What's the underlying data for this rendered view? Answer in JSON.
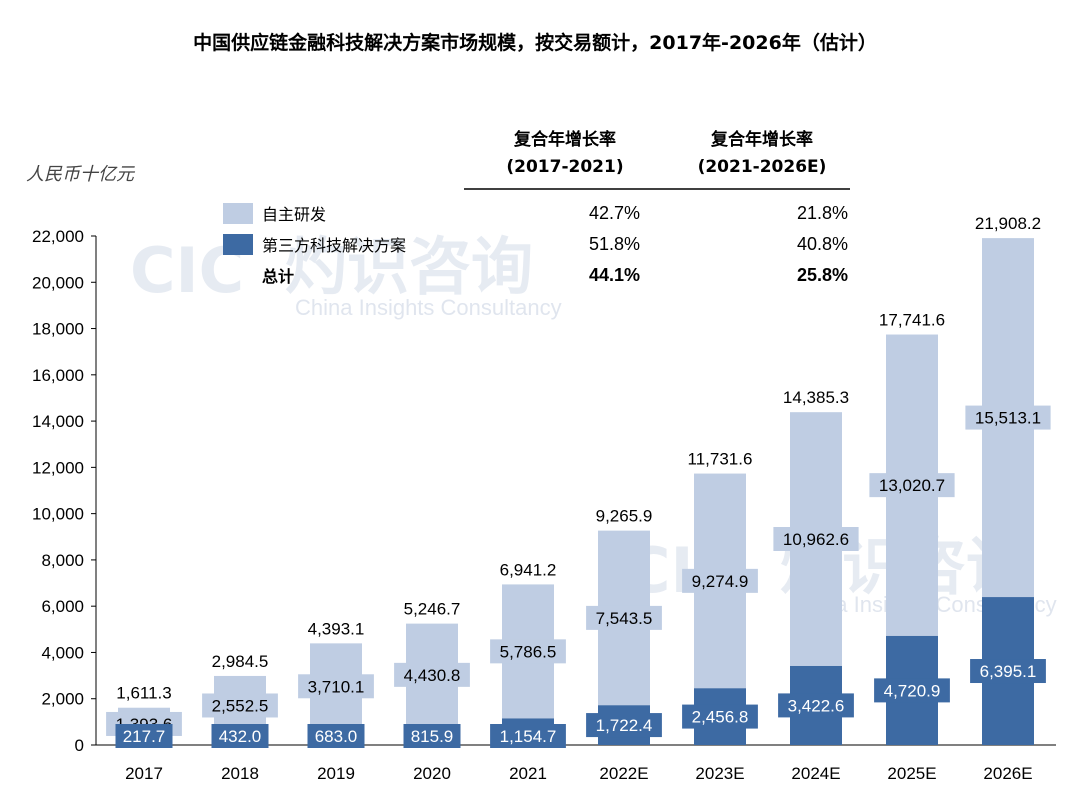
{
  "title": "中国供应链金融科技解决方案市场规模，按交易额计，2017年-2026年（估计）",
  "unit_label": "人民币十亿元",
  "watermark": {
    "cn": "灼识咨询",
    "logo": "CIC",
    "en": "China Insights Consultancy"
  },
  "colors": {
    "inhouse": "#bfcde3",
    "thirdparty": "#3d6aa3",
    "label_box_light": "#bfcde3",
    "label_box_dark": "#3d6aa3"
  },
  "cagr_table": {
    "headers": [
      {
        "line1": "复合年增长率",
        "line2": "(2017-2021)"
      },
      {
        "line1": "复合年增长率",
        "line2": "(2021-2026E)"
      }
    ],
    "rows": [
      {
        "label": "自主研发",
        "values": [
          "42.7%",
          "21.8%"
        ],
        "bold": false
      },
      {
        "label": "第三方科技解决方案",
        "values": [
          "51.8%",
          "40.8%"
        ],
        "bold": false
      },
      {
        "label": "总计",
        "values": [
          "44.1%",
          "25.8%"
        ],
        "bold": true
      }
    ]
  },
  "chart_data": {
    "type": "bar",
    "stacked": true,
    "categories": [
      "2017",
      "2018",
      "2019",
      "2020",
      "2021",
      "2022E",
      "2023E",
      "2024E",
      "2025E",
      "2026E"
    ],
    "series": [
      {
        "name": "第三方科技解决方案",
        "values": [
          217.7,
          432.0,
          683.0,
          815.9,
          1154.7,
          1722.4,
          2456.8,
          3422.6,
          4720.9,
          6395.1
        ],
        "labels": [
          "217.7",
          "432.0",
          "683.0",
          "815.9",
          "1,154.7",
          "1,722.4",
          "2,456.8",
          "3,422.6",
          "4,720.9",
          "6,395.1"
        ]
      },
      {
        "name": "自主研发",
        "values": [
          1393.6,
          2552.5,
          3710.1,
          4430.8,
          5786.5,
          7543.5,
          9274.9,
          10962.6,
          13020.7,
          15513.1
        ],
        "labels": [
          "1,393.6",
          "2,552.5",
          "3,710.1",
          "4,430.8",
          "5,786.5",
          "7,543.5",
          "9,274.9",
          "10,962.6",
          "13,020.7",
          "15,513.1"
        ]
      }
    ],
    "totals": [
      1611.3,
      2984.5,
      4393.1,
      5246.7,
      6941.2,
      9265.9,
      11731.6,
      14385.3,
      17741.6,
      21908.2
    ],
    "total_labels": [
      "1,611.3",
      "2,984.5",
      "4,393.1",
      "5,246.7",
      "6,941.2",
      "9,265.9",
      "11,731.6",
      "14,385.3",
      "17,741.6",
      "21,908.2"
    ],
    "ylim": [
      0,
      22000
    ],
    "yticks": [
      0,
      2000,
      4000,
      6000,
      8000,
      10000,
      12000,
      14000,
      16000,
      18000,
      20000,
      22000
    ],
    "ytick_labels": [
      "0",
      "2,000",
      "4,000",
      "6,000",
      "8,000",
      "10,000",
      "12,000",
      "14,000",
      "16,000",
      "18,000",
      "20,000",
      "22,000"
    ],
    "ylabel": "人民币十亿元",
    "legend": [
      {
        "name": "自主研发"
      },
      {
        "name": "第三方科技解决方案"
      },
      {
        "name": "总计"
      }
    ],
    "grid": false
  }
}
